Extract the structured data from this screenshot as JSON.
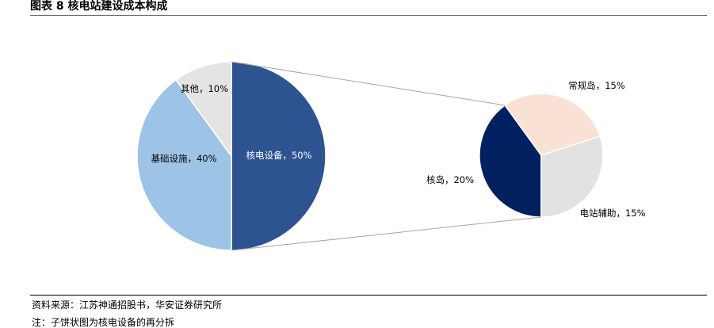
{
  "title": "图表 8  核电站建设成本构成",
  "source": "资料来源：江苏神通招股书，华安证券研究所",
  "note": "注：子饼状图为核电设备的再分拆",
  "chart_data": [
    {
      "type": "pie",
      "labels": [
        "核电设备",
        "基础设施",
        "其他"
      ],
      "values": [
        50,
        40,
        10
      ],
      "data_labels": [
        "核电设备，50%",
        "基础设施，40%",
        "其他，10%"
      ],
      "colors": [
        "#2e5391",
        "#9dc3e6",
        "#e4e4e4"
      ]
    },
    {
      "type": "pie",
      "labels": [
        "核岛",
        "常规岛",
        "电站辅助"
      ],
      "values": [
        20,
        15,
        15
      ],
      "data_labels": [
        "核岛，20%",
        "常规岛，15%",
        "电站辅助，15%"
      ],
      "colors": [
        "#002060",
        "#f9e2d4",
        "#e2e2e2"
      ]
    }
  ]
}
